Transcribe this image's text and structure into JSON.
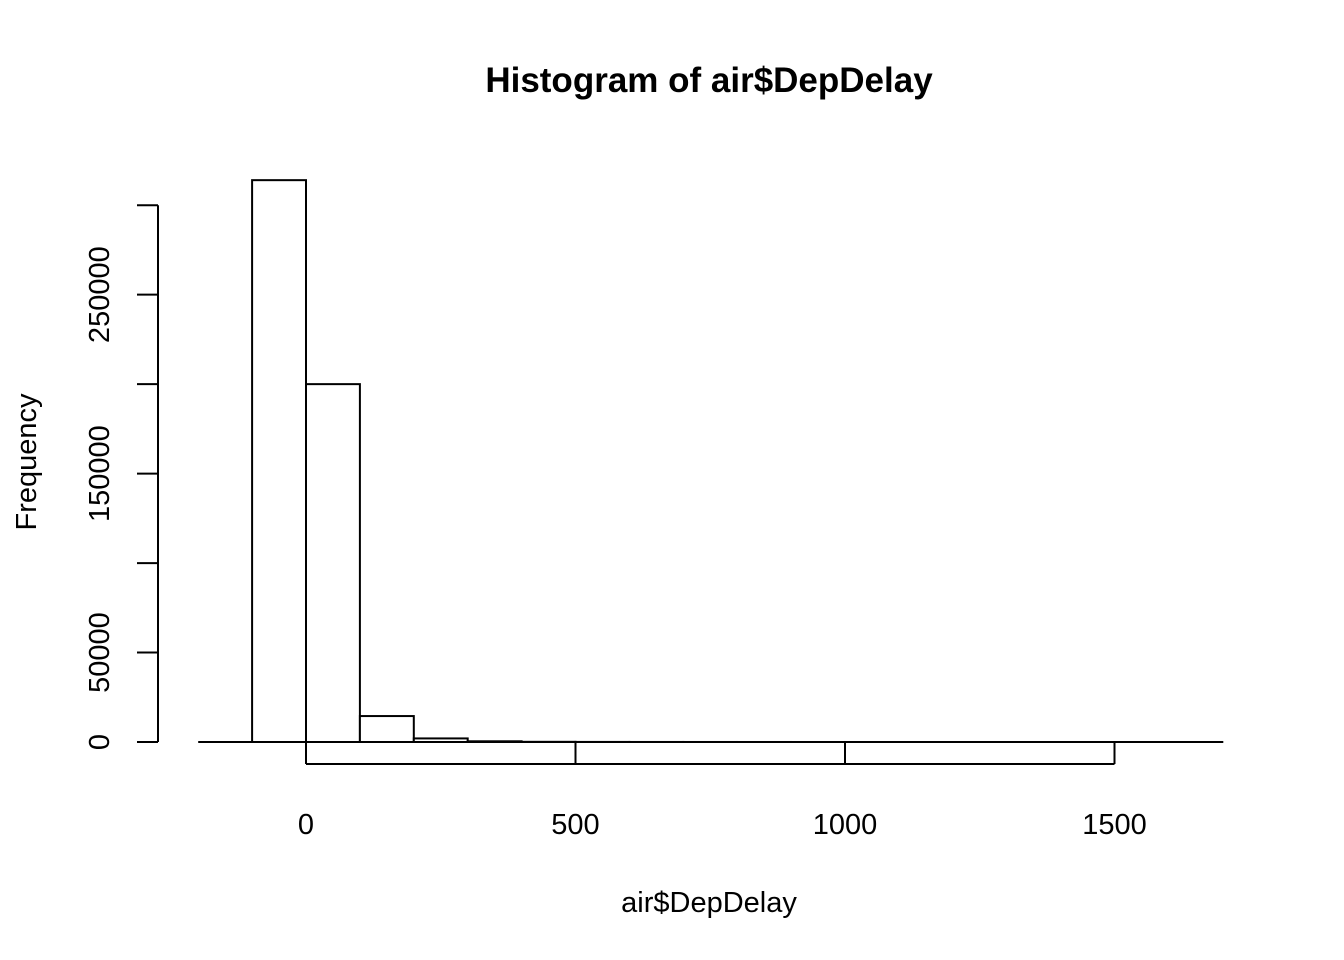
{
  "chart_data": {
    "type": "bar",
    "title": "Histogram of air$DepDelay",
    "xlabel": "air$DepDelay",
    "ylabel": "Frequency",
    "bin_edges": [
      -100,
      0,
      100,
      200,
      300,
      400,
      500,
      600,
      700,
      800,
      900,
      1000,
      1100,
      1200,
      1300,
      1400,
      1500,
      1600,
      1700
    ],
    "values": [
      314000,
      200000,
      14500,
      2000,
      400,
      100,
      40,
      20,
      10,
      5,
      3,
      2,
      1,
      1,
      1,
      1,
      1,
      1
    ],
    "x_ticks": [
      0,
      500,
      1000,
      1500
    ],
    "x_tick_labels": [
      "0",
      "500",
      "1000",
      "1500"
    ],
    "y_ticks": [
      0,
      50000,
      100000,
      150000,
      200000,
      250000,
      300000
    ],
    "y_tick_labels": [
      "0",
      "50000",
      "",
      "150000",
      "",
      "250000",
      ""
    ],
    "xlim": [
      -200,
      1700
    ],
    "ylim": [
      0,
      314000
    ],
    "grid": false
  }
}
